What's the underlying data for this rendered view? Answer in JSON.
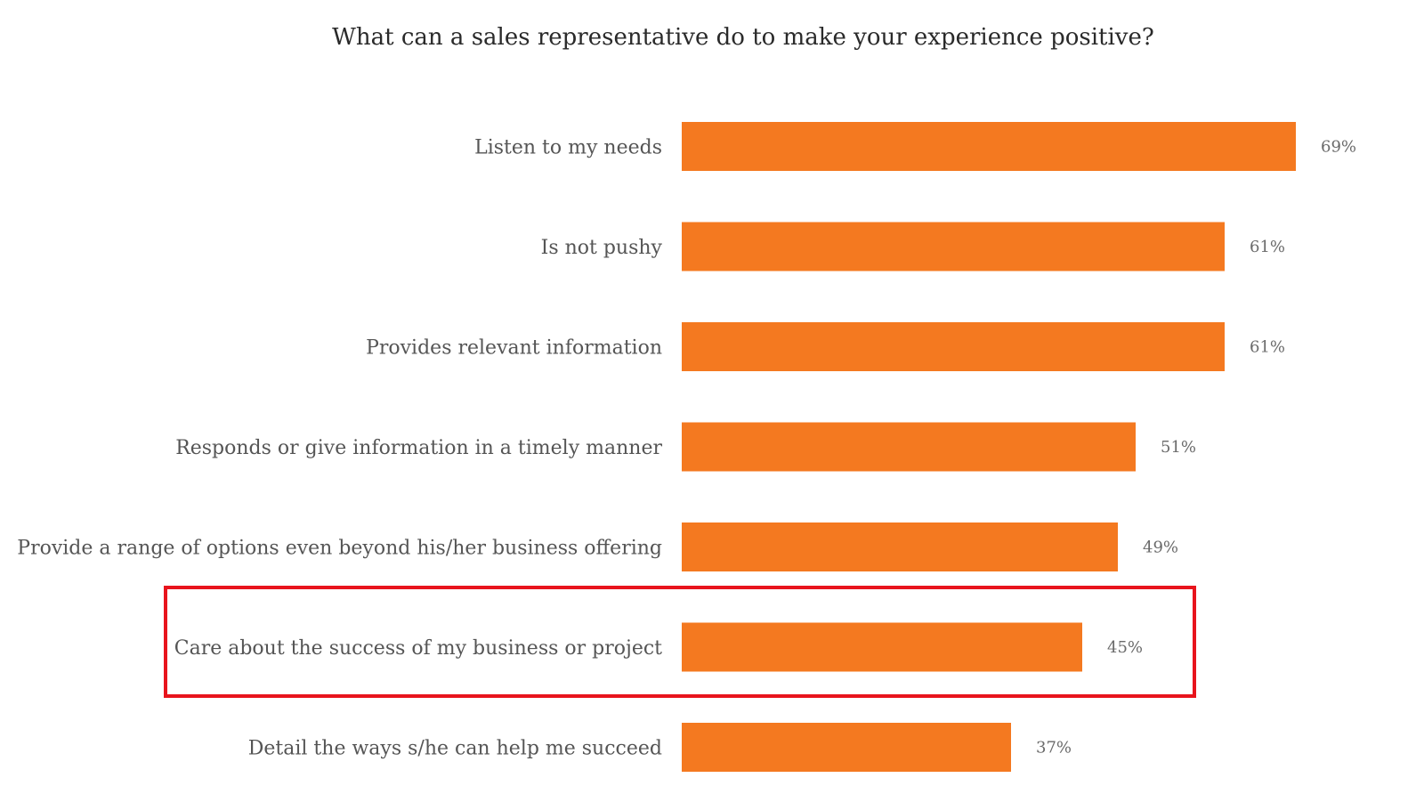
{
  "chart_data": {
    "type": "bar",
    "orientation": "horizontal",
    "title": "What can a sales representative do to make your experience positive?",
    "categories": [
      "Listen to my needs",
      "Is not pushy",
      "Provides relevant information",
      "Responds or give information in a timely manner",
      "Provide a range of options even beyond his/her business offering",
      "Care about the success of my business or project",
      "Detail the ways s/he can help me succeed"
    ],
    "values": [
      69,
      61,
      61,
      51,
      49,
      45,
      37
    ],
    "value_labels": [
      "69%",
      "61%",
      "61%",
      "51%",
      "49%",
      "45%",
      "37%"
    ],
    "unit": "%",
    "xlim": [
      0,
      100
    ],
    "grid": false,
    "legend": "none",
    "highlighted_category_index": 5
  },
  "colors": {
    "bar": "#f47920",
    "highlight_box": "#e8141c",
    "background": "#ffffff"
  }
}
